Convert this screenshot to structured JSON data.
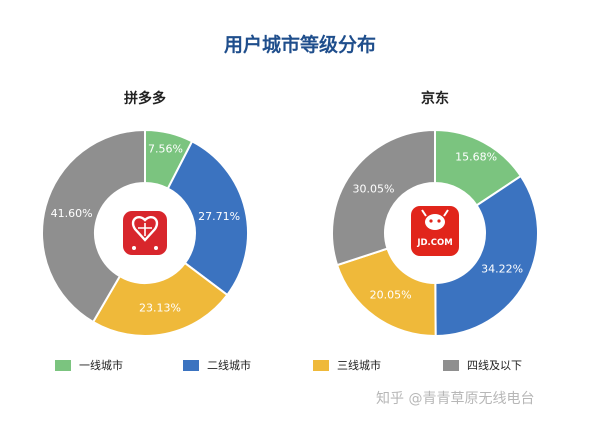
{
  "title": "用户城市等级分布",
  "colors": {
    "tier1": "#7bc47f",
    "tier2": "#3b73c0",
    "tier3": "#efb93a",
    "tier4": "#8f8f8f",
    "pdd_logo": "#d8262c",
    "jd_logo": "#e1251b"
  },
  "chart_data": [
    {
      "type": "pie",
      "variant": "donut",
      "subtitle": "拼多多",
      "center_logo": "pinduoduo-logo",
      "categories": [
        "一线城市",
        "二线城市",
        "三线城市",
        "四线及以下"
      ],
      "values": [
        7.56,
        27.71,
        23.13,
        41.6
      ],
      "labels": [
        "7.56%",
        "27.71%",
        "23.13%",
        "41.60%"
      ]
    },
    {
      "type": "pie",
      "variant": "donut",
      "subtitle": "京东",
      "center_logo": "jd-logo",
      "center_logo_text": "JD.COM",
      "categories": [
        "一线城市",
        "二线城市",
        "三线城市",
        "四线及以下"
      ],
      "values": [
        15.68,
        34.22,
        20.05,
        30.05
      ],
      "labels": [
        "15.68%",
        "34.22%",
        "20.05%",
        "30.05%"
      ]
    }
  ],
  "legend": [
    "一线城市",
    "二线城市",
    "三线城市",
    "四线及以下"
  ],
  "watermark": "知乎 @青青草原无线电台"
}
